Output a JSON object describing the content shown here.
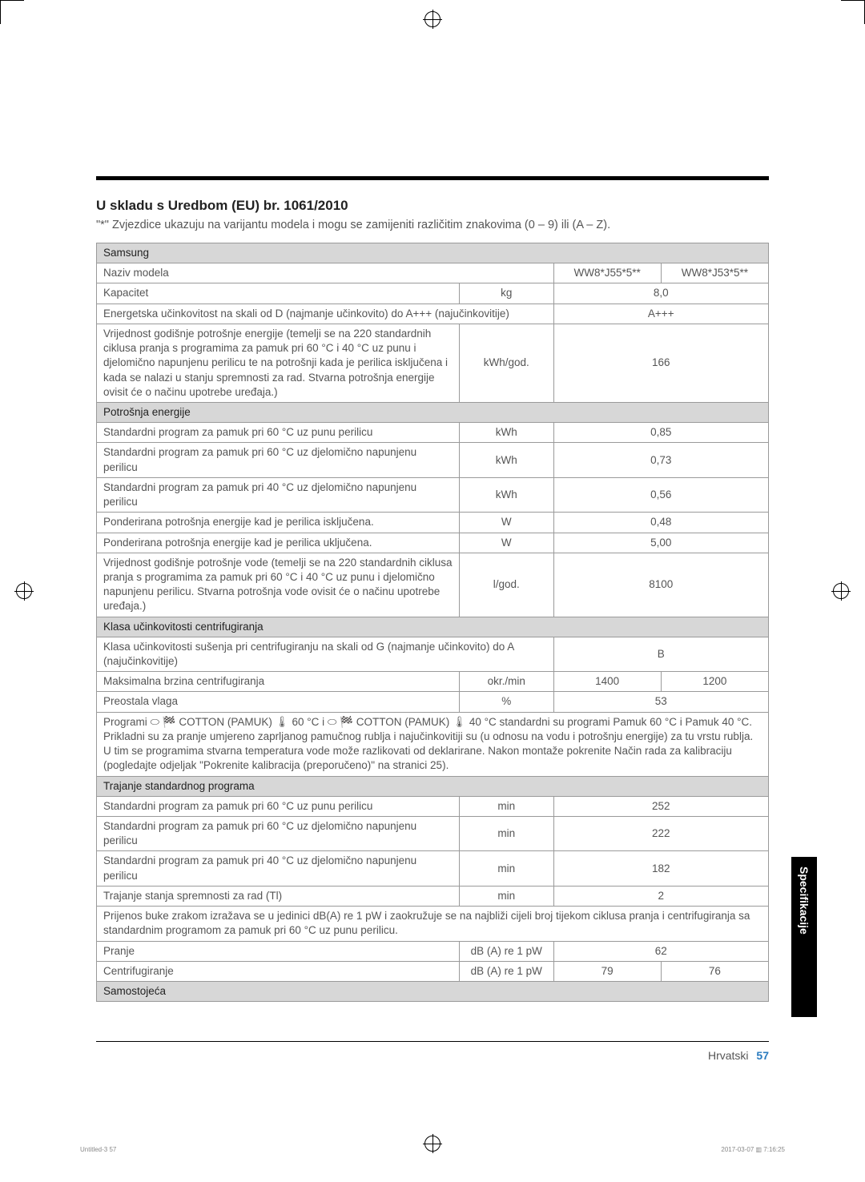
{
  "title": "U skladu s Uredbom (EU) br. 1061/2010",
  "subtitle": "\"*\" Zvjezdice ukazuju na varijantu modela i mogu se zamijeniti različitim znakovima (0 – 9) ili (A – Z).",
  "brandRow": "Samsung",
  "modelRow": {
    "label": "Naziv modela",
    "c1": "WW8*J55*5**",
    "c2": "WW8*J53*5**"
  },
  "capacityRow": {
    "label": "Kapacitet",
    "unit": "kg",
    "value": "8,0"
  },
  "effRow": {
    "label": "Energetska učinkovitost na skali od D (najmanje učinkovito) do A+++ (najučinkovitije)",
    "value": "A+++"
  },
  "annualEnergy": {
    "label": "Vrijednost godišnje potrošnje energije (temelji se na 220 standardnih ciklusa pranja s programima za pamuk pri 60 °C i 40 °C uz punu i djelomično napunjenu perilicu te na potrošnji kada je perilica isključena i kada se nalazi u stanju spremnosti za rad. Stvarna potrošnja energije ovisit će o načinu upotrebe uređaja.)",
    "unit": "kWh/god.",
    "value": "166"
  },
  "sectionEnergy": "Potrošnja energije",
  "e60full": {
    "label": "Standardni program za pamuk pri 60 °C uz punu perilicu",
    "unit": "kWh",
    "value": "0,85"
  },
  "e60part": {
    "label": "Standardni program za pamuk pri 60 °C uz djelomično napunjenu perilicu",
    "unit": "kWh",
    "value": "0,73"
  },
  "e40part": {
    "label": "Standardni program za pamuk pri 40 °C uz djelomično napunjenu perilicu",
    "unit": "kWh",
    "value": "0,56"
  },
  "offMode": {
    "label": "Ponderirana potrošnja energije kad je perilica isključena.",
    "unit": "W",
    "value": "0,48"
  },
  "onMode": {
    "label": "Ponderirana potrošnja energije kad je perilica uključena.",
    "unit": "W",
    "value": "5,00"
  },
  "annualWater": {
    "label": "Vrijednost godišnje potrošnje vode (temelji se na 220 standardnih ciklusa pranja s programima za pamuk pri 60 °C i 40 °C uz punu i djelomično napunjenu perilicu. Stvarna potrošnja vode ovisit će o načinu upotrebe uređaja.)",
    "unit": "l/god.",
    "value": "8100"
  },
  "sectionSpin": "Klasa učinkovitosti centrifugiranja",
  "spinClass": {
    "label": "Klasa učinkovitosti sušenja pri centrifugiranju na skali od G (najmanje učinkovito) do A (najučinkovitije)",
    "value": "B"
  },
  "maxSpin": {
    "label": "Maksimalna brzina centrifugiranja",
    "unit": "okr./min",
    "c1": "1400",
    "c2": "1200"
  },
  "moisture": {
    "label": "Preostala vlaga",
    "unit": "%",
    "value": "53"
  },
  "programsNote": "Programi ⬭ 🏁 COTTON (PAMUK) 🌡 60 °C i ⬭ 🏁 COTTON (PAMUK) 🌡 40 °C standardni su programi Pamuk 60 °C i Pamuk 40 °C. Prikladni su za pranje umjereno zaprljanog pamučnog rublja i najučinkovitiji su (u odnosu na vodu i potrošnju energije) za tu vrstu rublja. U tim se programima stvarna temperatura vode može razlikovati od deklarirane. Nakon montaže pokrenite Način rada za kalibraciju (pogledajte odjeljak \"Pokrenite kalibracija (preporučeno)\" na stranici 25).",
  "sectionDuration": "Trajanje standardnog programa",
  "d60full": {
    "label": "Standardni program za pamuk pri 60 °C uz punu perilicu",
    "unit": "min",
    "value": "252"
  },
  "d60part": {
    "label": "Standardni program za pamuk pri 60 °C uz djelomično napunjenu perilicu",
    "unit": "min",
    "value": "222"
  },
  "d40part": {
    "label": "Standardni program za pamuk pri 40 °C uz djelomično napunjenu perilicu",
    "unit": "min",
    "value": "182"
  },
  "standby": {
    "label": "Trajanje stanja spremnosti za rad (Tl)",
    "unit": "min",
    "value": "2"
  },
  "noiseNote": "Prijenos buke zrakom izražava se u jedinici dB(A) re 1 pW i zaokružuje se na najbliži cijeli broj tijekom ciklusa pranja i centrifugiranja sa standardnim programom za pamuk pri 60 °C uz punu perilicu.",
  "wash": {
    "label": "Pranje",
    "unit": "dB (A) re 1 pW",
    "value": "62"
  },
  "spin": {
    "label": "Centrifugiranje",
    "unit": "dB (A) re 1 pW",
    "c1": "79",
    "c2": "76"
  },
  "freestanding": "Samostojeća",
  "sideTab": "Specifikacije",
  "footerLang": "Hrvatski",
  "footerPage": "57",
  "tinyLeft": "Untitled-3   57",
  "tinyRight": "2017-03-07   ▥ 7:16:25",
  "colWidths": {
    "desc": "54%",
    "unit": "14%",
    "c1": "16%",
    "c2": "16%"
  }
}
